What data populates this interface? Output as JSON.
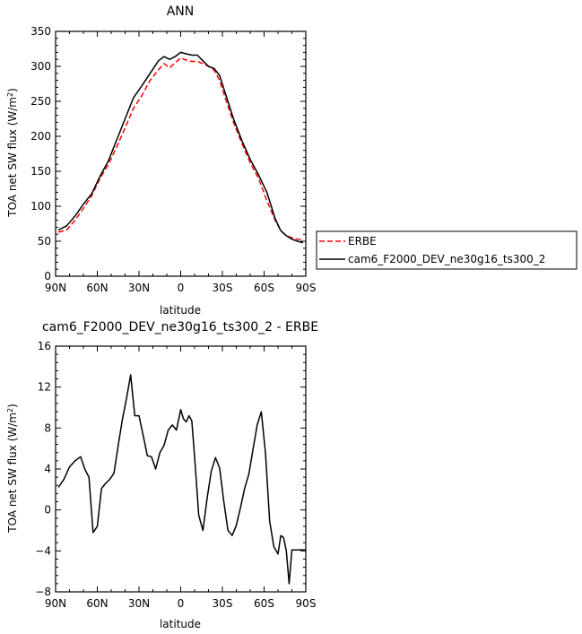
{
  "chart_data": [
    {
      "type": "line",
      "title": "ANN",
      "xlabel": "latitude",
      "ylabel": "TOA net SW flux (W/m",
      "ylabel_sup": "2",
      "ylabel_end": ")",
      "xlim": [
        -90,
        90
      ],
      "ylim": [
        0,
        350
      ],
      "x_ticks": [
        -90,
        -60,
        -30,
        0,
        30,
        60,
        90
      ],
      "x_tick_labels": [
        "90N",
        "60N",
        "30N",
        "0",
        "30S",
        "60S",
        "90S"
      ],
      "y_ticks": [
        0,
        50,
        100,
        150,
        200,
        250,
        300,
        350
      ],
      "y_tick_labels": [
        "0",
        "50",
        "100",
        "150",
        "200",
        "250",
        "300",
        "350"
      ],
      "legend_position": "right",
      "series": [
        {
          "name": "ERBE",
          "color": "#ff0000",
          "dash": true,
          "x": [
            -88,
            -82,
            -76,
            -70,
            -64,
            -58,
            -52,
            -46,
            -40,
            -34,
            -28,
            -22,
            -16,
            -12,
            -8,
            -4,
            0,
            4,
            8,
            12,
            16,
            20,
            24,
            28,
            32,
            38,
            44,
            50,
            56,
            62,
            68,
            72,
            76,
            80,
            84,
            88
          ],
          "y": [
            63,
            66,
            80,
            97,
            115,
            140,
            160,
            185,
            212,
            240,
            258,
            280,
            295,
            304,
            298,
            305,
            312,
            309,
            307,
            307,
            304,
            300,
            295,
            280,
            255,
            220,
            190,
            162,
            140,
            108,
            80,
            65,
            58,
            55,
            53,
            52
          ]
        },
        {
          "name": "cam6_F2000_DEV_ne30g16_ts300_2",
          "color": "#000000",
          "dash": false,
          "x": [
            -88,
            -82,
            -76,
            -70,
            -64,
            -58,
            -52,
            -46,
            -40,
            -34,
            -28,
            -22,
            -16,
            -12,
            -8,
            -4,
            0,
            4,
            8,
            12,
            16,
            20,
            24,
            28,
            32,
            38,
            44,
            50,
            56,
            62,
            68,
            72,
            76,
            80,
            84,
            88
          ],
          "y": [
            66,
            72,
            86,
            103,
            118,
            143,
            165,
            195,
            225,
            255,
            272,
            290,
            308,
            314,
            310,
            314,
            320,
            318,
            316,
            316,
            308,
            300,
            297,
            287,
            262,
            225,
            194,
            167,
            145,
            120,
            82,
            65,
            58,
            53,
            50,
            48
          ]
        }
      ]
    },
    {
      "type": "line",
      "title": "cam6_F2000_DEV_ne30g16_ts300_2 - ERBE",
      "xlabel": "latitude",
      "ylabel": "TOA net SW flux (W/m",
      "ylabel_sup": "2",
      "ylabel_end": ")",
      "xlim": [
        -90,
        90
      ],
      "ylim": [
        -8,
        16
      ],
      "x_ticks": [
        -90,
        -60,
        -30,
        0,
        30,
        60,
        90
      ],
      "x_tick_labels": [
        "90N",
        "60N",
        "30N",
        "0",
        "30S",
        "60S",
        "90S"
      ],
      "y_ticks": [
        -8,
        -4,
        0,
        4,
        8,
        12,
        16
      ],
      "y_tick_labels": [
        "−8",
        "−4",
        "0",
        "4",
        "8",
        "12",
        "16"
      ],
      "series": [
        {
          "color": "#000000",
          "dash": false,
          "x": [
            -88,
            -84,
            -80,
            -76,
            -72,
            -69,
            -66,
            -63,
            -60,
            -57,
            -54,
            -51,
            -48,
            -45,
            -42,
            -39,
            -36,
            -33,
            -30,
            -27,
            -24,
            -21,
            -18,
            -15,
            -12,
            -9,
            -6,
            -3,
            0,
            2,
            4,
            6,
            8,
            10,
            13,
            16,
            19,
            22,
            25,
            28,
            31,
            34,
            37,
            40,
            43,
            46,
            49,
            52,
            55,
            58,
            61,
            64,
            67,
            70,
            72,
            74,
            76,
            78,
            80,
            82,
            84,
            86,
            88,
            90
          ],
          "y": [
            2.2,
            3.0,
            4.2,
            4.8,
            5.2,
            4.0,
            3.2,
            -2.2,
            -1.6,
            2.1,
            2.6,
            3.0,
            3.6,
            6.3,
            8.8,
            10.9,
            13.2,
            9.2,
            9.2,
            7.3,
            5.3,
            5.2,
            4.0,
            5.6,
            6.3,
            7.8,
            8.3,
            7.8,
            9.8,
            8.9,
            8.6,
            9.2,
            8.7,
            5.2,
            -0.5,
            -2.0,
            1.1,
            3.8,
            5.1,
            4.1,
            0.8,
            -2.0,
            -2.5,
            -1.5,
            0.2,
            2.1,
            3.5,
            5.9,
            8.3,
            9.6,
            5.5,
            -1.1,
            -3.6,
            -4.3,
            -2.5,
            -2.7,
            -4.0,
            -7.2,
            -3.9,
            -3.9,
            -3.9,
            -3.9,
            -3.9,
            -3.9
          ]
        }
      ]
    }
  ]
}
